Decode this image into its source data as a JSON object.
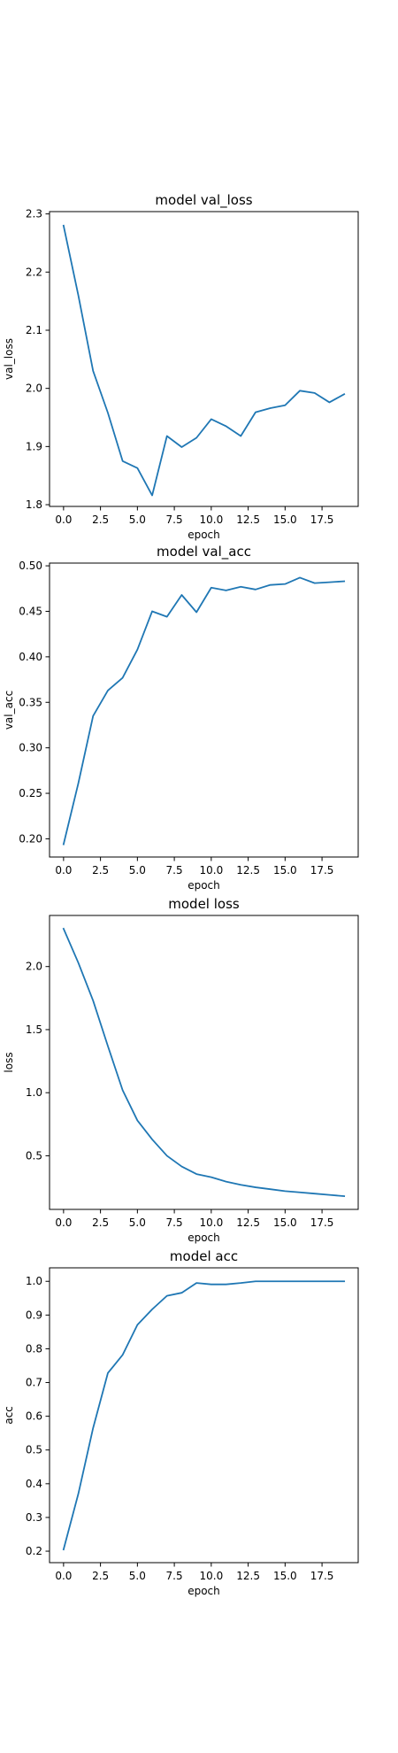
{
  "chart_data": [
    {
      "type": "line",
      "title": "model val_loss",
      "xlabel": "epoch",
      "ylabel": "val_loss",
      "x": [
        0,
        1,
        2,
        3,
        4,
        5,
        6,
        7,
        8,
        9,
        10,
        11,
        12,
        13,
        14,
        15,
        16,
        17,
        18,
        19
      ],
      "series": [
        {
          "values": [
            2.28,
            2.16,
            2.03,
            1.958,
            1.875,
            1.863,
            1.816,
            1.918,
            1.899,
            1.915,
            1.947,
            1.935,
            1.918,
            1.959,
            1.966,
            1.971,
            1.996,
            1.992,
            1.976,
            1.99
          ]
        }
      ],
      "xlim": [
        -0.95,
        19.95
      ],
      "ylim": [
        1.797,
        2.304
      ],
      "xticks": [
        0.0,
        2.5,
        5.0,
        7.5,
        10.0,
        12.5,
        15.0,
        17.5
      ],
      "xtick_labels": [
        "0.0",
        "2.5",
        "5.0",
        "7.5",
        "10.0",
        "12.5",
        "15.0",
        "17.5"
      ],
      "yticks": [
        1.8,
        1.9,
        2.0,
        2.1,
        2.2,
        2.3
      ],
      "ytick_labels": [
        "1.8",
        "1.9",
        "2.0",
        "2.1",
        "2.2",
        "2.3"
      ],
      "grid": false,
      "line_color": "#1f77b4"
    },
    {
      "type": "line",
      "title": "model val_acc",
      "xlabel": "epoch",
      "ylabel": "val_acc",
      "x": [
        0,
        1,
        2,
        3,
        4,
        5,
        6,
        7,
        8,
        9,
        10,
        11,
        12,
        13,
        14,
        15,
        16,
        17,
        18,
        19
      ],
      "series": [
        {
          "values": [
            0.194,
            0.261,
            0.335,
            0.363,
            0.377,
            0.408,
            0.45,
            0.444,
            0.468,
            0.449,
            0.476,
            0.473,
            0.477,
            0.474,
            0.479,
            0.48,
            0.487,
            0.481,
            0.482,
            0.483
          ]
        }
      ],
      "xlim": [
        -0.95,
        19.95
      ],
      "ylim": [
        0.18,
        0.503
      ],
      "xticks": [
        0.0,
        2.5,
        5.0,
        7.5,
        10.0,
        12.5,
        15.0,
        17.5
      ],
      "xtick_labels": [
        "0.0",
        "2.5",
        "5.0",
        "7.5",
        "10.0",
        "12.5",
        "15.0",
        "17.5"
      ],
      "yticks": [
        0.2,
        0.25,
        0.3,
        0.35,
        0.4,
        0.45,
        0.5
      ],
      "ytick_labels": [
        "0.20",
        "0.25",
        "0.30",
        "0.35",
        "0.40",
        "0.45",
        "0.50"
      ],
      "grid": false,
      "line_color": "#1f77b4"
    },
    {
      "type": "line",
      "title": "model loss",
      "xlabel": "epoch",
      "ylabel": "loss",
      "x": [
        0,
        1,
        2,
        3,
        4,
        5,
        6,
        7,
        8,
        9,
        10,
        11,
        12,
        13,
        14,
        15,
        16,
        17,
        18,
        19
      ],
      "series": [
        {
          "values": [
            2.3,
            2.03,
            1.73,
            1.37,
            1.02,
            0.78,
            0.63,
            0.5,
            0.415,
            0.355,
            0.33,
            0.295,
            0.27,
            0.25,
            0.235,
            0.22,
            0.21,
            0.2,
            0.19,
            0.18
          ]
        }
      ],
      "xlim": [
        -0.95,
        19.95
      ],
      "ylim": [
        0.075,
        2.405
      ],
      "xticks": [
        0.0,
        2.5,
        5.0,
        7.5,
        10.0,
        12.5,
        15.0,
        17.5
      ],
      "xtick_labels": [
        "0.0",
        "2.5",
        "5.0",
        "7.5",
        "10.0",
        "12.5",
        "15.0",
        "17.5"
      ],
      "yticks": [
        0.5,
        1.0,
        1.5,
        2.0
      ],
      "ytick_labels": [
        "0.5",
        "1.0",
        "1.5",
        "2.0"
      ],
      "grid": false,
      "line_color": "#1f77b4"
    },
    {
      "type": "line",
      "title": "model acc",
      "xlabel": "epoch",
      "ylabel": "acc",
      "x": [
        0,
        1,
        2,
        3,
        4,
        5,
        6,
        7,
        8,
        9,
        10,
        11,
        12,
        13,
        14,
        15,
        16,
        17,
        18,
        19
      ],
      "series": [
        {
          "values": [
            0.205,
            0.37,
            0.565,
            0.728,
            0.782,
            0.871,
            0.917,
            0.957,
            0.966,
            0.995,
            0.991,
            0.991,
            0.995,
            1.0,
            1.0,
            1.0,
            1.0,
            1.0,
            1.0,
            1.0
          ]
        }
      ],
      "xlim": [
        -0.95,
        19.95
      ],
      "ylim": [
        0.166,
        1.04
      ],
      "xticks": [
        0.0,
        2.5,
        5.0,
        7.5,
        10.0,
        12.5,
        15.0,
        17.5
      ],
      "xtick_labels": [
        "0.0",
        "2.5",
        "5.0",
        "7.5",
        "10.0",
        "12.5",
        "15.0",
        "17.5"
      ],
      "yticks": [
        0.2,
        0.3,
        0.4,
        0.5,
        0.6,
        0.7,
        0.8,
        0.9,
        1.0
      ],
      "ytick_labels": [
        "0.2",
        "0.3",
        "0.4",
        "0.5",
        "0.6",
        "0.7",
        "0.8",
        "0.9",
        "1.0"
      ],
      "grid": false,
      "line_color": "#1f77b4"
    }
  ]
}
